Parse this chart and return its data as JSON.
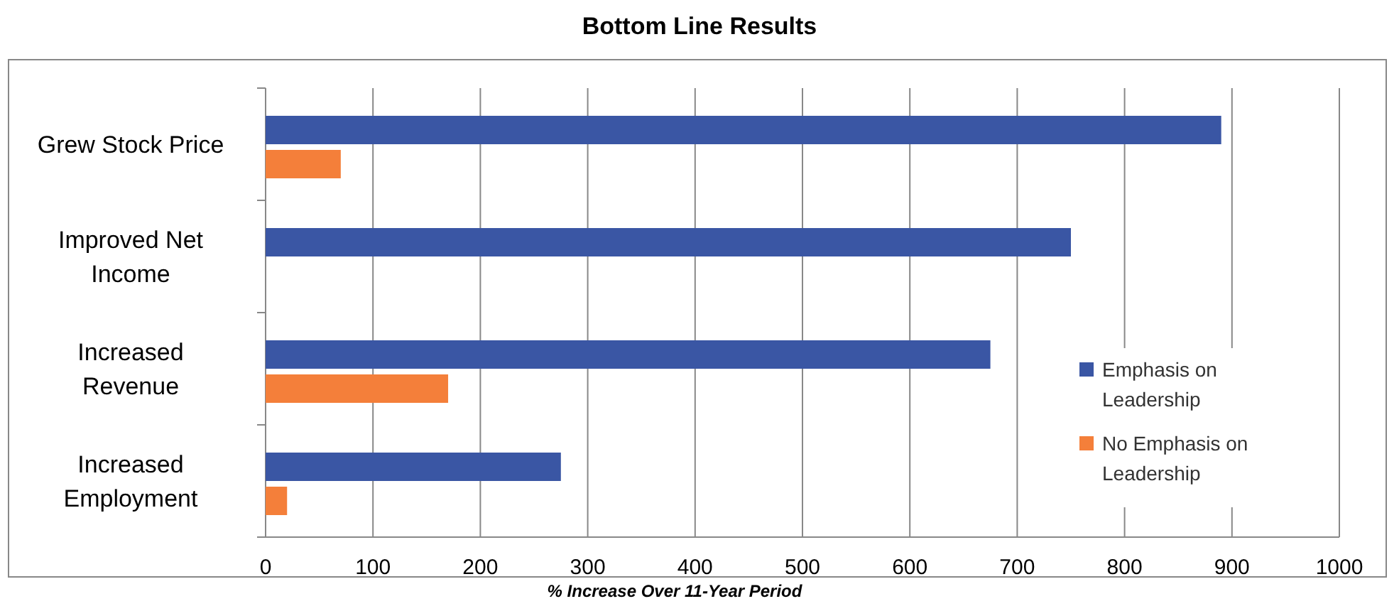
{
  "chart_data": {
    "type": "bar",
    "orientation": "horizontal",
    "title": "Bottom Line Results",
    "xlabel": "% Increase Over 11-Year Period",
    "categories": [
      "Grew Stock Price",
      "Improved Net Income",
      "Increased Revenue",
      "Increased Employment"
    ],
    "series": [
      {
        "name": "Emphasis on Leadership",
        "color": "#3a56a4",
        "values": [
          890,
          750,
          675,
          275
        ]
      },
      {
        "name": "No Emphasis on Leadership",
        "color": "#f47f3a",
        "values": [
          70,
          null,
          170,
          20
        ]
      }
    ],
    "xlim": [
      0,
      1000
    ],
    "xticks": [
      0,
      100,
      200,
      300,
      400,
      500,
      600,
      700,
      800,
      900,
      1000
    ],
    "grid": "x",
    "legend": "right"
  }
}
